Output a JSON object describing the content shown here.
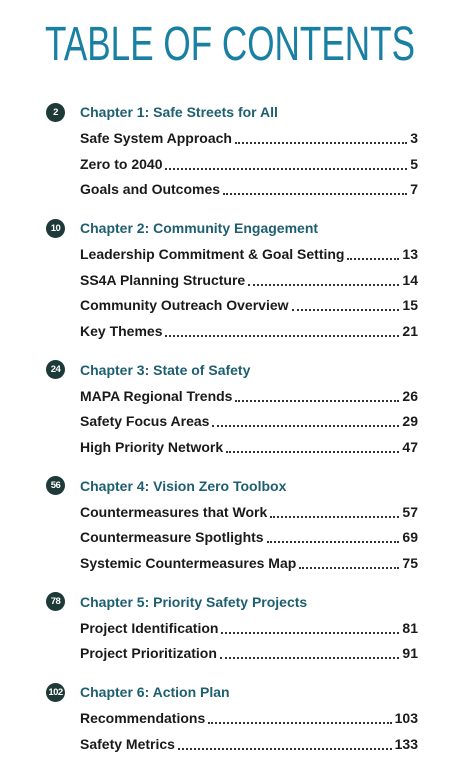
{
  "title": "TABLE OF CONTENTS",
  "chapters": [
    {
      "badge": "2",
      "title": "Chapter 1: Safe Streets for All",
      "entries": [
        {
          "label": "Safe System Approach",
          "page": "3"
        },
        {
          "label": "Zero to 2040",
          "page": "5"
        },
        {
          "label": "Goals and Outcomes",
          "page": "7"
        }
      ]
    },
    {
      "badge": "10",
      "title": "Chapter 2: Community Engagement",
      "entries": [
        {
          "label": "Leadership Commitment & Goal Setting",
          "page": "13"
        },
        {
          "label": "SS4A Planning Structure",
          "page": "14"
        },
        {
          "label": "Community Outreach Overview",
          "page": "15"
        },
        {
          "label": "Key Themes",
          "page": "21"
        }
      ]
    },
    {
      "badge": "24",
      "title": "Chapter 3: State of Safety",
      "entries": [
        {
          "label": "MAPA Regional Trends",
          "page": "26"
        },
        {
          "label": "Safety Focus Areas",
          "page": "29"
        },
        {
          "label": "High Priority Network",
          "page": "47"
        }
      ]
    },
    {
      "badge": "56",
      "title": "Chapter 4: Vision Zero Toolbox",
      "entries": [
        {
          "label": "Countermeasures that Work",
          "page": "57"
        },
        {
          "label": "Countermeasure Spotlights",
          "page": "69"
        },
        {
          "label": "Systemic Countermeasures Map",
          "page": "75"
        }
      ]
    },
    {
      "badge": "78",
      "title": "Chapter 5: Priority Safety Projects",
      "entries": [
        {
          "label": "Project Identification",
          "page": "81"
        },
        {
          "label": "Project Prioritization",
          "page": "91"
        }
      ]
    },
    {
      "badge": "102",
      "title": "Chapter 6: Action Plan",
      "entries": [
        {
          "label": "Recommendations",
          "page": "103"
        },
        {
          "label": "Safety Metrics",
          "page": "133"
        }
      ]
    }
  ]
}
